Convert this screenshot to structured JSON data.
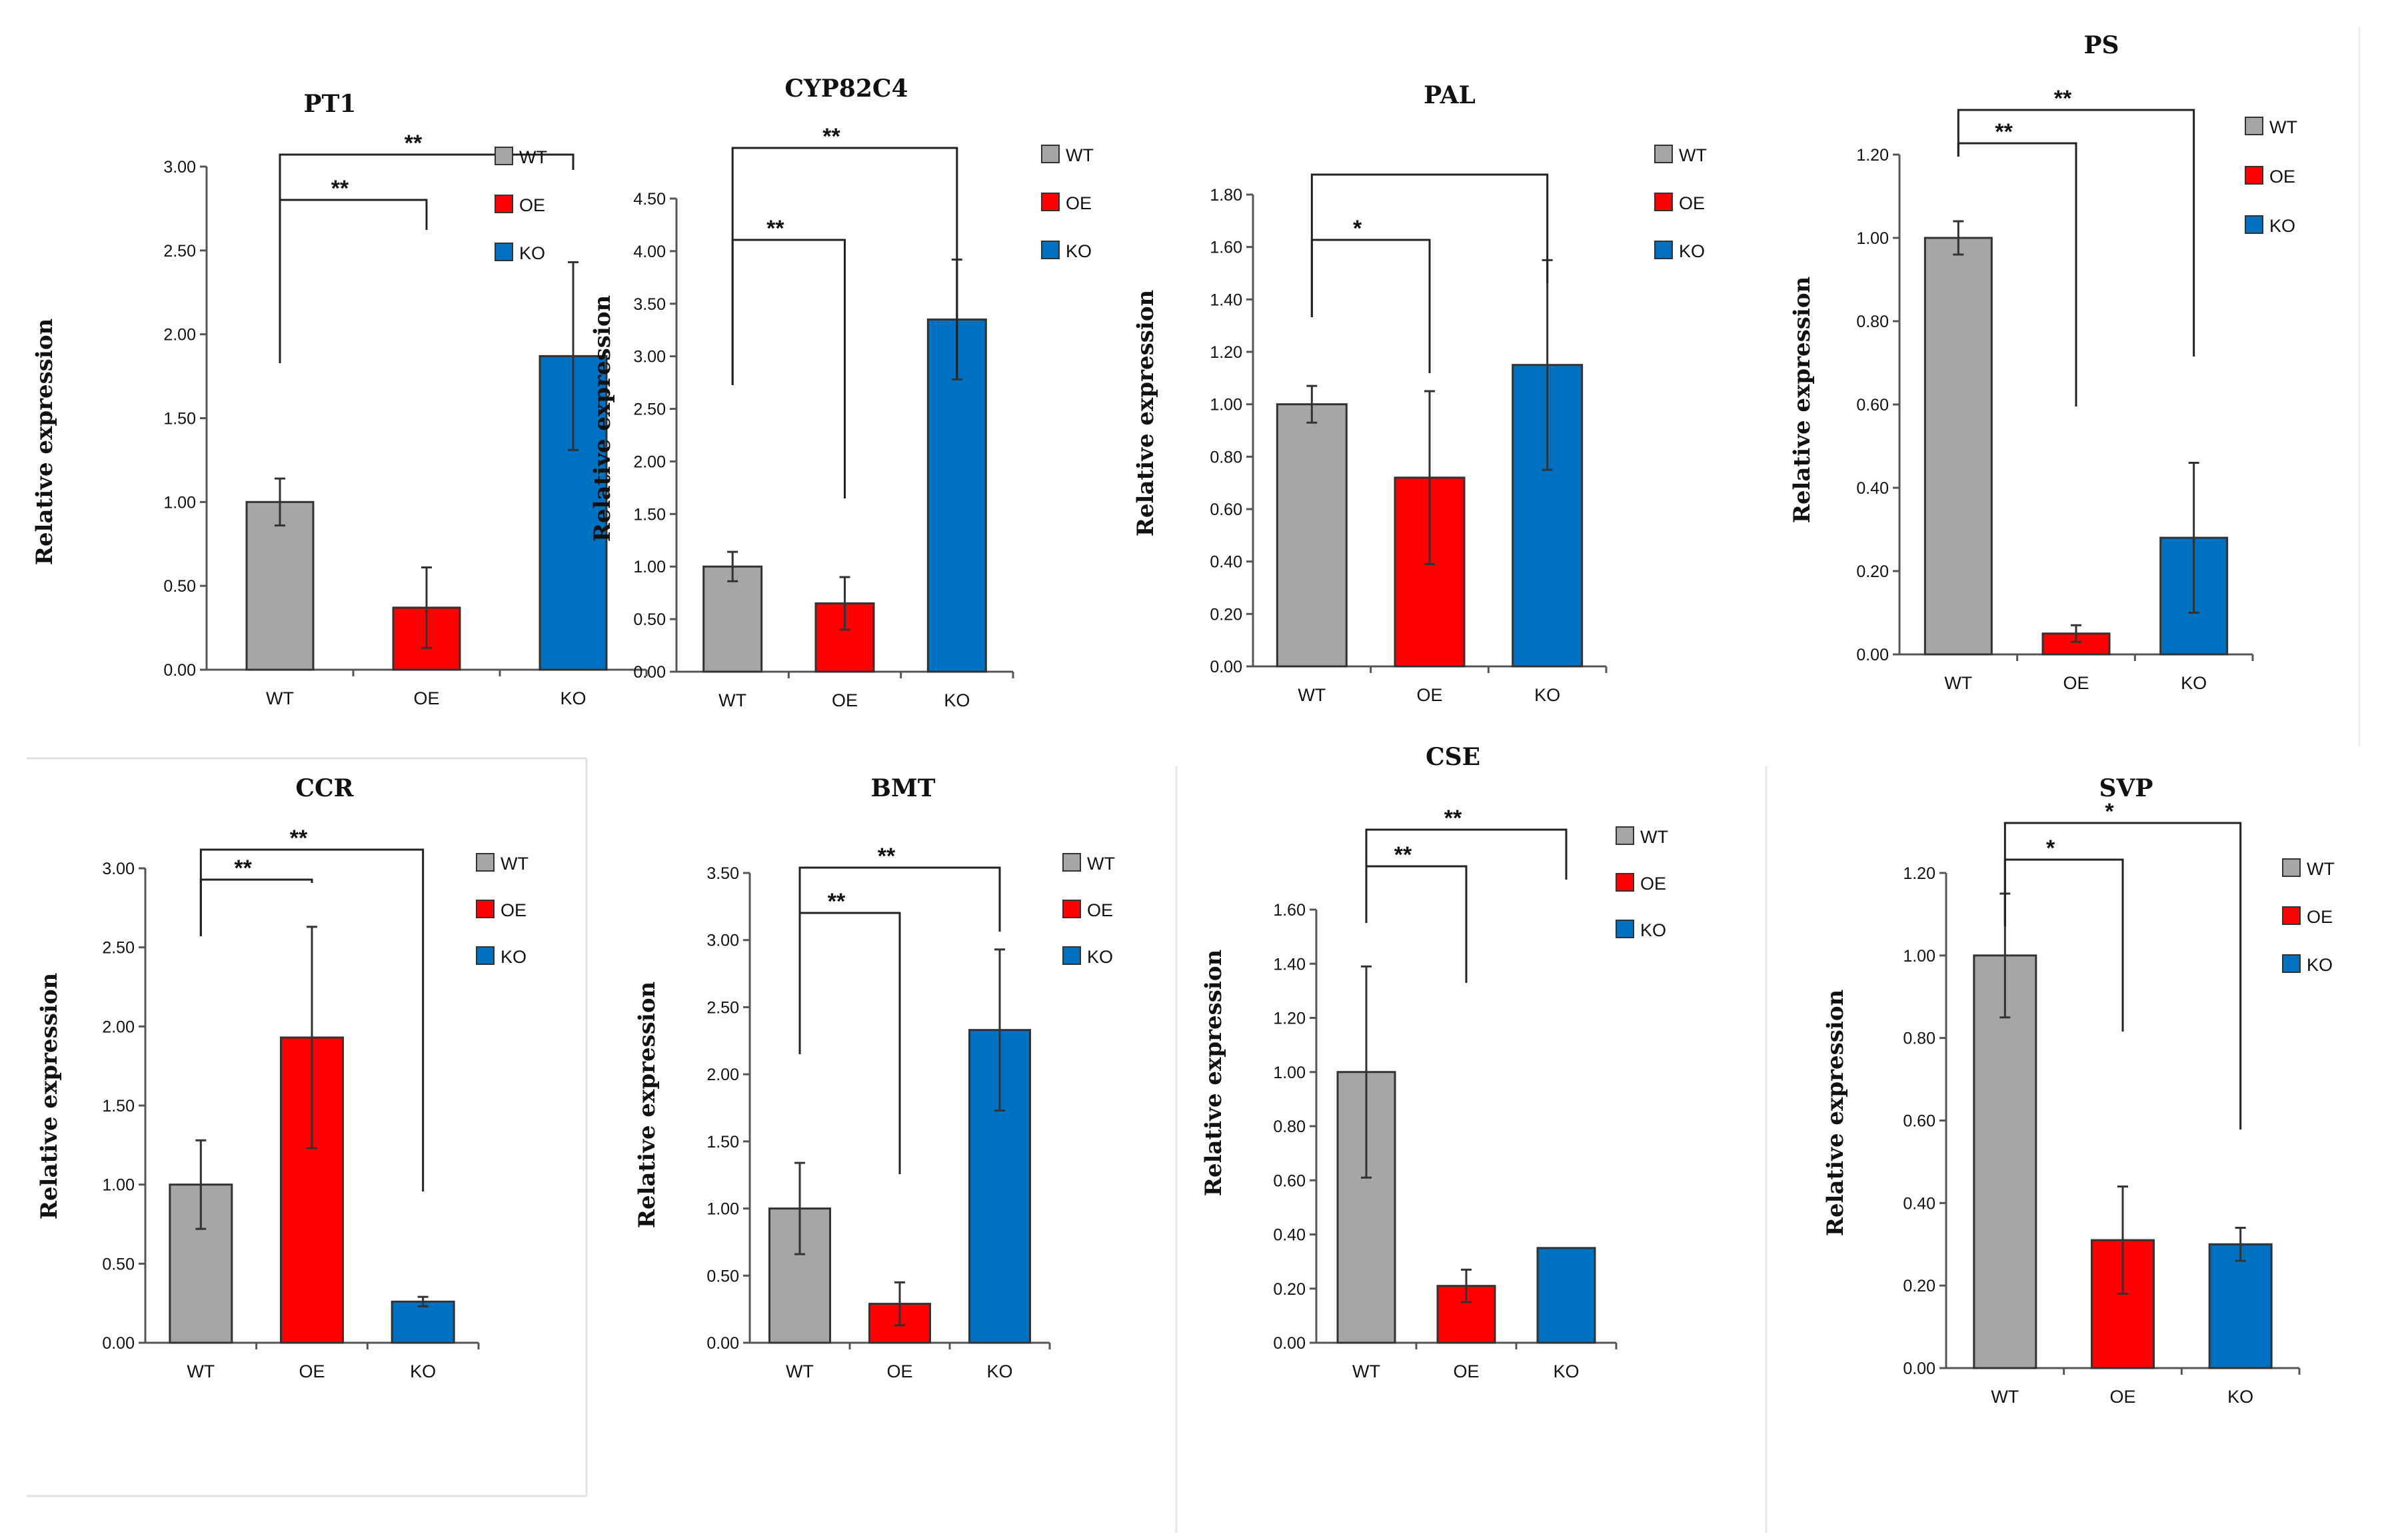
{
  "chart_data": [
    {
      "type": "bar",
      "title": "PT1",
      "ylabel": "Relative expression",
      "categories": [
        "WT",
        "OE",
        "KO"
      ],
      "values": [
        1.0,
        0.37,
        1.87
      ],
      "errors": [
        0.14,
        0.24,
        0.56
      ],
      "ylim": [
        0,
        3.0
      ],
      "yticks": [
        "0.00",
        "0.50",
        "1.00",
        "1.50",
        "2.00",
        "2.50",
        "3.00"
      ],
      "legend": [
        "WT",
        "OE",
        "KO"
      ],
      "legend_position": "right",
      "significance": [
        {
          "pair": [
            "WT",
            "OE"
          ],
          "label": "**"
        },
        {
          "pair": [
            "WT",
            "KO"
          ],
          "label": "**"
        }
      ]
    },
    {
      "type": "bar",
      "title": "CYP82C4",
      "ylabel": "Relative expression",
      "categories": [
        "WT",
        "OE",
        "KO"
      ],
      "values": [
        1.0,
        0.65,
        3.35
      ],
      "errors": [
        0.14,
        0.25,
        0.57
      ],
      "ylim": [
        0,
        4.5
      ],
      "yticks": [
        "0.00",
        "0.50",
        "1.00",
        "1.50",
        "2.00",
        "2.50",
        "3.00",
        "3.50",
        "4.00",
        "4.50"
      ],
      "legend": [
        "WT",
        "OE",
        "KO"
      ],
      "legend_position": "right",
      "significance": [
        {
          "pair": [
            "WT",
            "OE"
          ],
          "label": "**"
        },
        {
          "pair": [
            "WT",
            "KO"
          ],
          "label": "**"
        }
      ]
    },
    {
      "type": "bar",
      "title": "PAL",
      "ylabel": "Relative expression",
      "categories": [
        "WT",
        "OE",
        "KO"
      ],
      "values": [
        1.0,
        0.72,
        1.15
      ],
      "errors": [
        0.07,
        0.33,
        0.4
      ],
      "ylim": [
        0,
        1.8
      ],
      "yticks": [
        "0.00",
        "0.20",
        "0.40",
        "0.60",
        "0.80",
        "1.00",
        "1.20",
        "1.40",
        "1.60",
        "1.80"
      ],
      "legend": [
        "WT",
        "OE",
        "KO"
      ],
      "legend_position": "right",
      "significance": [
        {
          "pair": [
            "WT",
            "OE"
          ],
          "label": "*"
        },
        {
          "pair": [
            "WT",
            "KO"
          ],
          "label": ""
        }
      ]
    },
    {
      "type": "bar",
      "title": "PS",
      "ylabel": "Relative expression",
      "categories": [
        "WT",
        "OE",
        "KO"
      ],
      "values": [
        1.0,
        0.05,
        0.28
      ],
      "errors": [
        0.04,
        0.02,
        0.18
      ],
      "ylim": [
        0,
        1.2
      ],
      "yticks": [
        "0.00",
        "0.20",
        "0.40",
        "0.60",
        "0.80",
        "1.00",
        "1.20"
      ],
      "legend": [
        "WT",
        "OE",
        "KO"
      ],
      "legend_position": "right",
      "significance": [
        {
          "pair": [
            "WT",
            "OE"
          ],
          "label": "**"
        },
        {
          "pair": [
            "WT",
            "KO"
          ],
          "label": "**"
        }
      ]
    },
    {
      "type": "bar",
      "title": "CCR",
      "ylabel": "Relative expression",
      "categories": [
        "WT",
        "OE",
        "KO"
      ],
      "values": [
        1.0,
        1.93,
        0.26
      ],
      "errors": [
        0.28,
        0.7,
        0.03
      ],
      "ylim": [
        0,
        3.0
      ],
      "yticks": [
        "0.00",
        "0.50",
        "1.00",
        "1.50",
        "2.00",
        "2.50",
        "3.00"
      ],
      "legend": [
        "WT",
        "OE",
        "KO"
      ],
      "legend_position": "right",
      "significance": [
        {
          "pair": [
            "WT",
            "OE"
          ],
          "label": "**"
        },
        {
          "pair": [
            "WT",
            "KO"
          ],
          "label": "**"
        }
      ]
    },
    {
      "type": "bar",
      "title": "BMT",
      "ylabel": "Relative expression",
      "categories": [
        "WT",
        "OE",
        "KO"
      ],
      "values": [
        1.0,
        0.29,
        2.33
      ],
      "errors": [
        0.34,
        0.16,
        0.6
      ],
      "ylim": [
        0,
        3.5
      ],
      "yticks": [
        "0.00",
        "0.50",
        "1.00",
        "1.50",
        "2.00",
        "2.50",
        "3.00",
        "3.50"
      ],
      "legend": [
        "WT",
        "OE",
        "KO"
      ],
      "legend_position": "right",
      "significance": [
        {
          "pair": [
            "WT",
            "OE"
          ],
          "label": "**"
        },
        {
          "pair": [
            "WT",
            "KO"
          ],
          "label": "**"
        }
      ]
    },
    {
      "type": "bar",
      "title": "CSE",
      "ylabel": "Relative expression",
      "categories": [
        "WT",
        "OE",
        "KO"
      ],
      "values": [
        1.0,
        0.21,
        0.35
      ],
      "errors": [
        0.39,
        0.06,
        0.0
      ],
      "ylim": [
        0,
        1.6
      ],
      "yticks": [
        "0.00",
        "0.20",
        "0.40",
        "0.60",
        "0.80",
        "1.00",
        "1.20",
        "1.40",
        "1.60"
      ],
      "legend": [
        "WT",
        "OE",
        "KO"
      ],
      "legend_position": "right",
      "significance": [
        {
          "pair": [
            "WT",
            "OE"
          ],
          "label": "**"
        },
        {
          "pair": [
            "WT",
            "KO"
          ],
          "label": "**"
        }
      ]
    },
    {
      "type": "bar",
      "title": "SVP",
      "ylabel": "Relative expression",
      "categories": [
        "WT",
        "OE",
        "KO"
      ],
      "values": [
        1.0,
        0.31,
        0.3
      ],
      "errors": [
        0.15,
        0.13,
        0.04
      ],
      "ylim": [
        0,
        1.2
      ],
      "yticks": [
        "0.00",
        "0.20",
        "0.40",
        "0.60",
        "0.80",
        "1.00",
        "1.20"
      ],
      "legend": [
        "WT",
        "OE",
        "KO"
      ],
      "legend_position": "right",
      "significance": [
        {
          "pair": [
            "WT",
            "OE"
          ],
          "label": "*"
        },
        {
          "pair": [
            "WT",
            "KO"
          ],
          "label": "*"
        }
      ]
    }
  ],
  "colors": {
    "WT": "#a6a6a6",
    "OE": "#ff0000",
    "KO": "#0070c0"
  }
}
